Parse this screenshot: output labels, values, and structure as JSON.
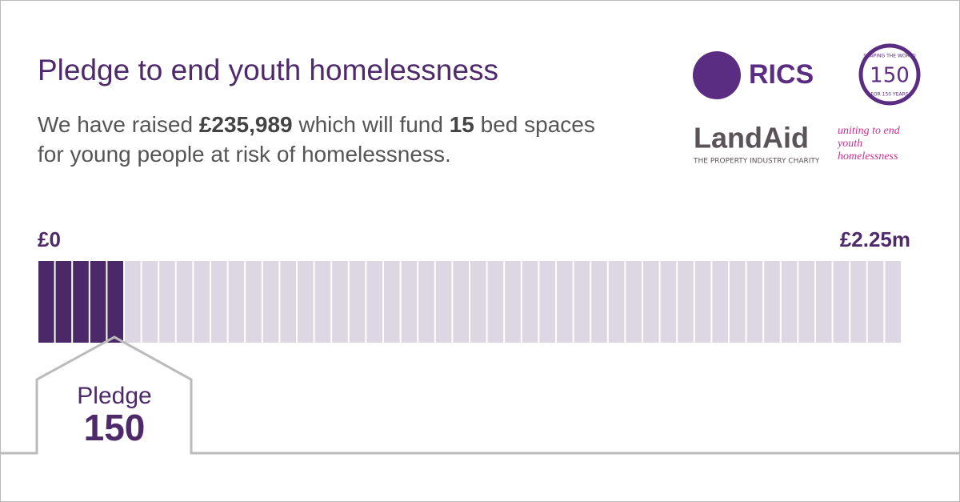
{
  "header": {
    "title": "Pledge to end youth homelessness",
    "text": [
      "We have raised ",
      "£235,989",
      " which will fund ",
      "15",
      " bed spaces for young people at risk of homelessness."
    ]
  },
  "logos": {
    "rics": "RICS",
    "anniversary_top": "SHAPING THE WORLD",
    "anniversary_number": "150",
    "anniversary_bottom": "FOR 150 YEARS",
    "landaid": "LandAid",
    "landaid_tagline": "THE PROPERTY INDUSTRY CHARITY",
    "slogan": "uniting to end youth homelessness"
  },
  "progress": {
    "start_label": "£0",
    "end_label": "£2.25m",
    "segments_total": 50,
    "segments_filled": 5
  },
  "pledge": {
    "label": "Pledge",
    "number": "150"
  }
}
